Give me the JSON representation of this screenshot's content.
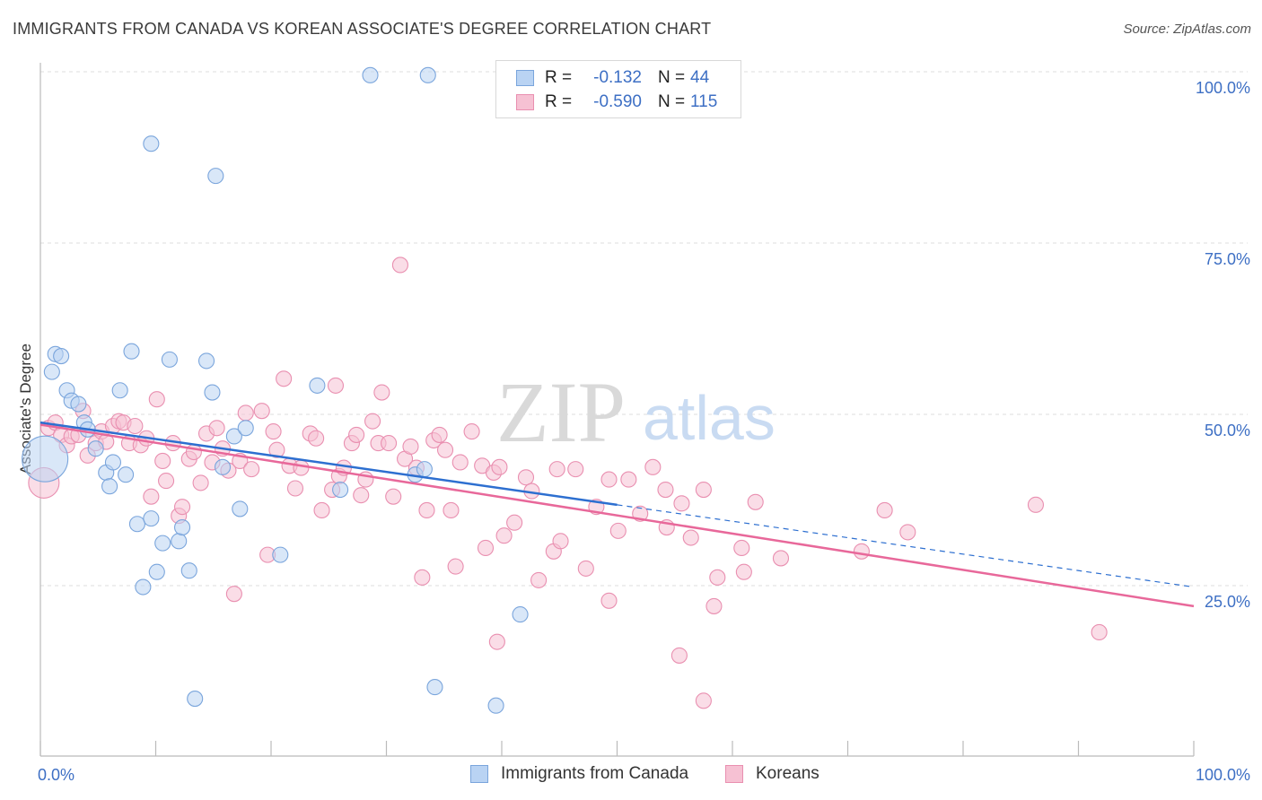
{
  "title": "IMMIGRANTS FROM CANADA VS KOREAN ASSOCIATE'S DEGREE CORRELATION CHART",
  "source": "Source: ZipAtlas.com",
  "watermark": {
    "zip": "ZIP",
    "atlas": "atlas"
  },
  "colors": {
    "blue_fill": "#b9d3f3",
    "blue_stroke": "#7aa5dc",
    "blue_line": "#2d6fd0",
    "pink_fill": "#f6c1d3",
    "pink_stroke": "#e98fb0",
    "pink_line": "#e8689a",
    "label": "#3d6fc4",
    "grid": "#dddddd"
  },
  "legend": {
    "rows": [
      {
        "r_label": "R =",
        "r_value": "-0.132",
        "n_label": "N =",
        "n_value": "44"
      },
      {
        "r_label": "R =",
        "r_value": "-0.590",
        "n_label": "N =",
        "n_value": "115"
      }
    ]
  },
  "bottom_legend": [
    "Immigrants from Canada",
    "Koreans"
  ],
  "chart_data": {
    "type": "scatter",
    "title": "IMMIGRANTS FROM CANADA VS KOREAN ASSOCIATE'S DEGREE CORRELATION CHART",
    "xlabel": "",
    "ylabel": "Associate's Degree",
    "xlim": [
      0,
      100
    ],
    "ylim": [
      2,
      100
    ],
    "x_tick_labels": [
      "0.0%",
      "100.0%"
    ],
    "y_ticks": [
      25,
      50,
      75,
      100
    ],
    "y_tick_labels": [
      "25.0%",
      "50.0%",
      "75.0%",
      "100.0%"
    ],
    "legend_position": "top-center",
    "series": [
      {
        "name": "Immigrants from Canada",
        "r": -0.132,
        "n": 44,
        "trend": {
          "x0": 0,
          "y0": 48.8,
          "x1": 100,
          "y1": 24.8,
          "solid_until": 50
        },
        "points": [
          [
            0.4,
            43.5,
            3
          ],
          [
            1.0,
            56.2,
            1
          ],
          [
            1.3,
            58.8,
            1
          ],
          [
            1.8,
            58.5,
            1
          ],
          [
            2.3,
            53.5,
            1
          ],
          [
            2.7,
            52.0,
            1
          ],
          [
            3.3,
            51.5,
            1
          ],
          [
            3.8,
            48.8,
            1
          ],
          [
            4.1,
            47.8,
            1
          ],
          [
            4.8,
            45.0,
            1
          ],
          [
            5.7,
            41.5,
            1
          ],
          [
            6.0,
            39.5,
            1
          ],
          [
            6.3,
            43.0,
            1
          ],
          [
            6.9,
            53.5,
            1
          ],
          [
            7.4,
            41.2,
            1
          ],
          [
            7.9,
            59.2,
            1
          ],
          [
            8.4,
            34.0,
            1
          ],
          [
            8.9,
            24.8,
            1
          ],
          [
            9.6,
            89.5,
            1
          ],
          [
            9.6,
            34.8,
            1
          ],
          [
            10.1,
            27.0,
            1
          ],
          [
            10.6,
            31.2,
            1
          ],
          [
            11.2,
            58.0,
            1
          ],
          [
            12.0,
            31.5,
            1
          ],
          [
            12.3,
            33.5,
            1
          ],
          [
            12.9,
            27.2,
            1
          ],
          [
            13.4,
            8.5,
            1
          ],
          [
            14.4,
            57.8,
            1
          ],
          [
            14.9,
            53.2,
            1
          ],
          [
            15.2,
            84.8,
            1
          ],
          [
            15.8,
            42.3,
            1
          ],
          [
            16.8,
            46.8,
            1
          ],
          [
            17.3,
            36.2,
            1
          ],
          [
            17.8,
            48.0,
            1
          ],
          [
            20.8,
            29.5,
            1
          ],
          [
            24.0,
            54.2,
            1
          ],
          [
            26.0,
            39.0,
            1
          ],
          [
            28.6,
            99.5,
            1
          ],
          [
            32.5,
            41.2,
            1
          ],
          [
            33.3,
            42.0,
            1
          ],
          [
            33.6,
            99.5,
            1
          ],
          [
            34.2,
            10.2,
            1
          ],
          [
            39.5,
            7.5,
            1
          ],
          [
            41.6,
            20.8,
            1
          ]
        ]
      },
      {
        "name": "Koreans",
        "r": -0.59,
        "n": 115,
        "trend": {
          "x0": 0,
          "y0": 48.5,
          "x1": 100,
          "y1": 22.0
        },
        "points": [
          [
            0.3,
            40.0,
            2
          ],
          [
            0.7,
            48.0,
            1
          ],
          [
            1.3,
            48.8,
            1
          ],
          [
            1.8,
            47.0,
            1
          ],
          [
            2.3,
            45.5,
            1
          ],
          [
            2.7,
            46.8,
            1
          ],
          [
            3.3,
            47.0,
            1
          ],
          [
            3.7,
            50.5,
            1
          ],
          [
            4.1,
            44.0,
            1
          ],
          [
            4.8,
            45.8,
            1
          ],
          [
            5.3,
            47.5,
            1
          ],
          [
            5.7,
            46.0,
            1
          ],
          [
            6.3,
            48.3,
            1
          ],
          [
            6.8,
            49.0,
            1
          ],
          [
            7.2,
            48.8,
            1
          ],
          [
            7.7,
            45.8,
            1
          ],
          [
            8.2,
            48.3,
            1
          ],
          [
            8.7,
            45.5,
            1
          ],
          [
            9.2,
            46.5,
            1
          ],
          [
            9.6,
            38.0,
            1
          ],
          [
            10.1,
            52.2,
            1
          ],
          [
            10.6,
            43.2,
            1
          ],
          [
            10.9,
            40.3,
            1
          ],
          [
            11.5,
            45.8,
            1
          ],
          [
            12.0,
            35.2,
            1
          ],
          [
            12.3,
            36.5,
            1
          ],
          [
            12.9,
            43.5,
            1
          ],
          [
            13.3,
            44.5,
            1
          ],
          [
            13.9,
            40.0,
            1
          ],
          [
            14.4,
            47.2,
            1
          ],
          [
            14.9,
            43.0,
            1
          ],
          [
            15.3,
            48.0,
            1
          ],
          [
            15.8,
            45.0,
            1
          ],
          [
            16.3,
            41.8,
            1
          ],
          [
            16.8,
            23.8,
            1
          ],
          [
            17.3,
            43.2,
            1
          ],
          [
            17.8,
            50.2,
            1
          ],
          [
            18.3,
            42.0,
            1
          ],
          [
            19.2,
            50.5,
            1
          ],
          [
            19.7,
            29.5,
            1
          ],
          [
            20.2,
            47.5,
            1
          ],
          [
            20.5,
            44.8,
            1
          ],
          [
            21.1,
            55.2,
            1
          ],
          [
            21.6,
            42.5,
            1
          ],
          [
            22.1,
            39.2,
            1
          ],
          [
            22.6,
            42.2,
            1
          ],
          [
            23.4,
            47.2,
            1
          ],
          [
            23.9,
            46.5,
            1
          ],
          [
            24.4,
            36.0,
            1
          ],
          [
            25.3,
            39.0,
            1
          ],
          [
            25.6,
            54.2,
            1
          ],
          [
            25.9,
            41.0,
            1
          ],
          [
            26.3,
            42.2,
            1
          ],
          [
            27.0,
            45.8,
            1
          ],
          [
            27.4,
            47.0,
            1
          ],
          [
            27.8,
            38.2,
            1
          ],
          [
            28.2,
            40.5,
            1
          ],
          [
            28.8,
            49.0,
            1
          ],
          [
            29.3,
            45.8,
            1
          ],
          [
            29.6,
            53.2,
            1
          ],
          [
            30.2,
            45.8,
            1
          ],
          [
            30.6,
            38.0,
            1
          ],
          [
            31.2,
            71.8,
            1
          ],
          [
            31.6,
            43.5,
            1
          ],
          [
            32.1,
            45.3,
            1
          ],
          [
            32.6,
            42.2,
            1
          ],
          [
            33.1,
            26.2,
            1
          ],
          [
            33.5,
            36.0,
            1
          ],
          [
            34.1,
            46.2,
            1
          ],
          [
            34.6,
            47.0,
            1
          ],
          [
            35.1,
            44.8,
            1
          ],
          [
            35.6,
            36.0,
            1
          ],
          [
            36.0,
            27.8,
            1
          ],
          [
            36.4,
            43.0,
            1
          ],
          [
            37.4,
            47.5,
            1
          ],
          [
            38.3,
            42.5,
            1
          ],
          [
            38.6,
            30.5,
            1
          ],
          [
            39.3,
            41.5,
            1
          ],
          [
            39.6,
            16.8,
            1
          ],
          [
            40.2,
            32.3,
            1
          ],
          [
            41.1,
            34.2,
            1
          ],
          [
            42.1,
            40.8,
            1
          ],
          [
            42.6,
            38.8,
            1
          ],
          [
            43.2,
            25.8,
            1
          ],
          [
            44.5,
            30.0,
            1
          ],
          [
            45.1,
            31.5,
            1
          ],
          [
            46.4,
            42.0,
            1
          ],
          [
            47.3,
            27.5,
            1
          ],
          [
            48.2,
            36.5,
            1
          ],
          [
            49.3,
            22.8,
            1
          ],
          [
            50.1,
            33.0,
            1
          ],
          [
            51.0,
            40.5,
            1
          ],
          [
            52.0,
            35.5,
            1
          ],
          [
            53.1,
            42.3,
            1
          ],
          [
            54.2,
            39.0,
            1
          ],
          [
            54.3,
            33.5,
            1
          ],
          [
            55.4,
            14.8,
            1
          ],
          [
            56.4,
            32.0,
            1
          ],
          [
            57.5,
            8.2,
            1
          ],
          [
            58.7,
            26.2,
            1
          ],
          [
            60.8,
            30.5,
            1
          ],
          [
            62.0,
            37.2,
            1
          ],
          [
            64.2,
            29.0,
            1
          ],
          [
            71.2,
            30.0,
            1
          ],
          [
            73.2,
            36.0,
            1
          ],
          [
            75.2,
            32.8,
            1
          ],
          [
            86.3,
            36.8,
            1
          ],
          [
            91.8,
            18.2,
            1
          ],
          [
            49.3,
            40.5,
            1
          ],
          [
            58.4,
            22.0,
            1
          ],
          [
            61.0,
            27.0,
            1
          ],
          [
            57.5,
            39.0,
            1
          ],
          [
            55.6,
            37.0,
            1
          ],
          [
            39.8,
            42.3,
            1
          ],
          [
            44.8,
            42.0,
            1
          ]
        ]
      }
    ]
  }
}
